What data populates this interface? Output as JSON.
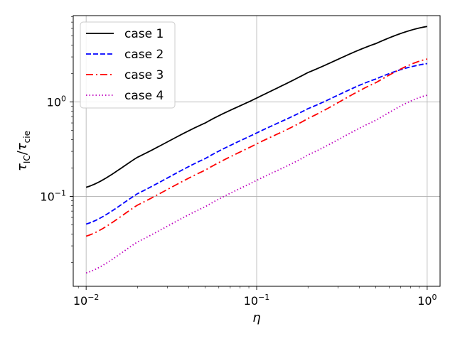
{
  "chart_data": {
    "type": "line",
    "xscale": "log",
    "yscale": "log",
    "xlim": [
      0.0084,
      1.19
    ],
    "ylim": [
      0.0112,
      8.2
    ],
    "grid": true,
    "legend_position": "top-left",
    "xlabel": "η",
    "ylabel": {
      "main": "τ",
      "sub1": "IC",
      "sep": "/",
      "main2": "τ",
      "sub2": "cie"
    },
    "xticks": [
      {
        "value": 0.01,
        "base": "10",
        "exp": "−2"
      },
      {
        "value": 0.1,
        "base": "10",
        "exp": "−1"
      },
      {
        "value": 1,
        "base": "10",
        "exp": "0"
      }
    ],
    "yticks": [
      {
        "value": 0.1,
        "base": "10",
        "exp": "−1"
      },
      {
        "value": 1,
        "base": "10",
        "exp": "0"
      }
    ],
    "x": [
      0.01,
      0.02,
      0.05,
      0.1,
      0.2,
      0.5,
      1.0
    ],
    "series": [
      {
        "name": "case 1",
        "color": "#000000",
        "dash": "solid",
        "values": [
          0.125,
          0.26,
          0.6,
          1.1,
          2.05,
          4.15,
          6.3
        ]
      },
      {
        "name": "case 2",
        "color": "#0000ff",
        "dash": "dashed",
        "values": [
          0.051,
          0.107,
          0.252,
          0.47,
          0.85,
          1.75,
          2.55
        ]
      },
      {
        "name": "case 3",
        "color": "#ff0000",
        "dash": "dashdot",
        "values": [
          0.038,
          0.081,
          0.19,
          0.36,
          0.67,
          1.6,
          2.85
        ]
      },
      {
        "name": "case 4",
        "color": "#bf00bf",
        "dash": "dotted",
        "values": [
          0.0155,
          0.033,
          0.078,
          0.148,
          0.275,
          0.64,
          1.18
        ]
      }
    ]
  }
}
